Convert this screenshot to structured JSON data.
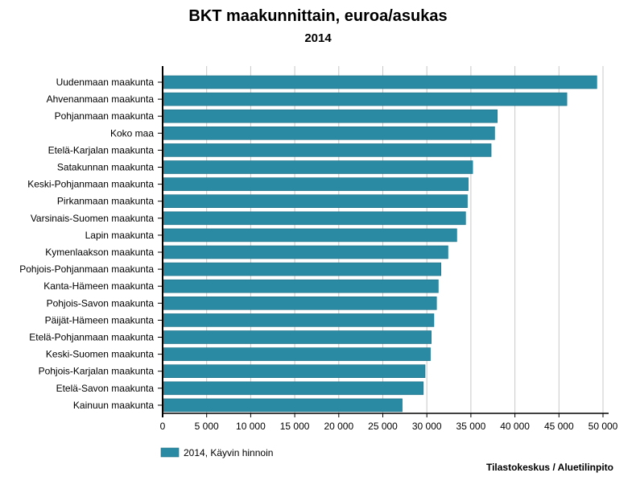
{
  "chart_data": {
    "type": "bar",
    "orientation": "horizontal",
    "title": "BKT maakunnittain, euroa/asukas",
    "subtitle": "2014",
    "categories": [
      "Uudenmaan maakunta",
      "Ahvenanmaan maakunta",
      "Pohjanmaan maakunta",
      "Koko maa",
      "Etelä-Karjalan maakunta",
      "Satakunnan maakunta",
      "Keski-Pohjanmaan maakunta",
      "Pirkanmaan maakunta",
      "Varsinais-Suomen maakunta",
      "Lapin maakunta",
      "Kymenlaakson maakunta",
      "Pohjois-Pohjanmaan maakunta",
      "Kanta-Hämeen maakunta",
      "Pohjois-Savon maakunta",
      "Päijät-Hämeen maakunta",
      "Etelä-Pohjanmaan maakunta",
      "Keski-Suomen maakunta",
      "Pohjois-Karjalan maakunta",
      "Etelä-Savon maakunta",
      "Kainuun maakunta"
    ],
    "series": [
      {
        "name": "2014, Käyvin hinnoin",
        "color": "#2a8aa3",
        "values": [
          49300,
          45900,
          38000,
          37700,
          37300,
          35200,
          34700,
          34600,
          34400,
          33400,
          32400,
          31600,
          31300,
          31100,
          30800,
          30500,
          30400,
          29800,
          29600,
          27200
        ]
      }
    ],
    "xlim": [
      0,
      50000
    ],
    "xticks": [
      0,
      5000,
      10000,
      15000,
      20000,
      25000,
      30000,
      35000,
      40000,
      45000,
      50000
    ],
    "xtick_labels": [
      "0",
      "5 000",
      "10 000",
      "15 000",
      "20 000",
      "25 000",
      "30 000",
      "35 000",
      "40 000",
      "45 000",
      "50 000"
    ],
    "grid": "vertical",
    "legend_position": "bottom-left"
  },
  "legend": {
    "label": "2014, Käyvin hinnoin",
    "color": "#2a8aa3"
  },
  "source": "Tilastokeskus / Aluetilinpito",
  "colors": {
    "bar": "#2a8aa3",
    "bar_edge": "#1f6f84",
    "grid": "#c8c8c8",
    "axis": "#000000"
  }
}
